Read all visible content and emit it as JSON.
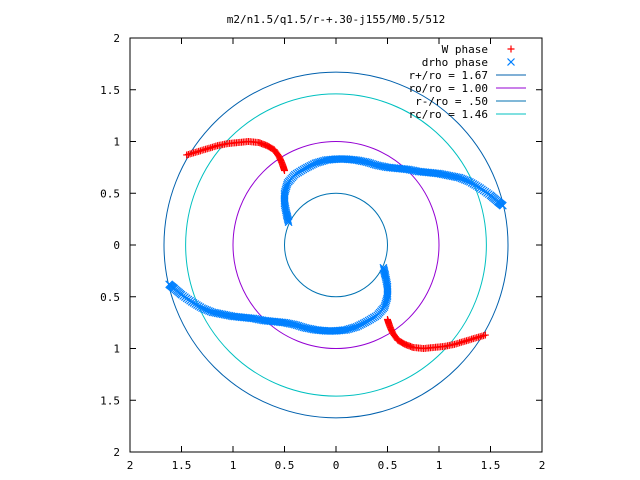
{
  "chart_data": {
    "type": "scatter",
    "title": "m2/n1.5/q1.5/r-+.30-j155/M0.5/512",
    "xlabel": "",
    "ylabel": "",
    "xlim": [
      -2,
      2
    ],
    "ylim": [
      -2,
      2
    ],
    "grid": false,
    "legend_position": "top-right",
    "x_tick_labels": [
      "2",
      "1.5",
      "1",
      "0.5",
      "0",
      "0.5",
      "1",
      "1.5",
      "2"
    ],
    "x_tick_values": [
      -2,
      -1.5,
      -1,
      -0.5,
      0,
      0.5,
      1,
      1.5,
      2
    ],
    "y_tick_labels": [
      "2",
      "1.5",
      "1",
      "0.5",
      "0",
      "0.5",
      "1",
      "1.5",
      "2"
    ],
    "y_tick_values": [
      2,
      1.5,
      1,
      0.5,
      0,
      -0.5,
      -1,
      -1.5,
      -2
    ],
    "series": [
      {
        "name": "W phase",
        "kind": "points",
        "marker": "plus",
        "color": "#ff0000",
        "points": [
          [
            -1.45,
            0.87
          ],
          [
            -1.35,
            0.9
          ],
          [
            -1.25,
            0.93
          ],
          [
            -1.15,
            0.96
          ],
          [
            -1.05,
            0.98
          ],
          [
            -0.95,
            0.99
          ],
          [
            -0.85,
            1.0
          ],
          [
            -0.75,
            0.99
          ],
          [
            -0.67,
            0.96
          ],
          [
            -0.6,
            0.92
          ],
          [
            -0.55,
            0.85
          ],
          [
            -0.52,
            0.78
          ],
          [
            -0.5,
            0.72
          ],
          [
            1.45,
            -0.87
          ],
          [
            1.35,
            -0.9
          ],
          [
            1.25,
            -0.93
          ],
          [
            1.15,
            -0.96
          ],
          [
            1.05,
            -0.98
          ],
          [
            0.95,
            -0.99
          ],
          [
            0.85,
            -1.0
          ],
          [
            0.75,
            -0.99
          ],
          [
            0.67,
            -0.96
          ],
          [
            0.6,
            -0.92
          ],
          [
            0.55,
            -0.85
          ],
          [
            0.52,
            -0.78
          ],
          [
            0.5,
            -0.72
          ]
        ]
      },
      {
        "name": "drho phase",
        "kind": "points",
        "marker": "cross",
        "color": "#0080ff",
        "points": [
          [
            -0.46,
            0.22
          ],
          [
            -0.48,
            0.3
          ],
          [
            -0.5,
            0.4
          ],
          [
            -0.5,
            0.5
          ],
          [
            -0.47,
            0.6
          ],
          [
            -0.4,
            0.68
          ],
          [
            -0.3,
            0.74
          ],
          [
            -0.2,
            0.79
          ],
          [
            -0.1,
            0.82
          ],
          [
            0.0,
            0.83
          ],
          [
            0.1,
            0.83
          ],
          [
            0.2,
            0.82
          ],
          [
            0.3,
            0.8
          ],
          [
            0.4,
            0.77
          ],
          [
            0.5,
            0.75
          ],
          [
            0.6,
            0.74
          ],
          [
            0.7,
            0.73
          ],
          [
            0.8,
            0.71
          ],
          [
            0.9,
            0.7
          ],
          [
            1.0,
            0.69
          ],
          [
            1.1,
            0.67
          ],
          [
            1.2,
            0.65
          ],
          [
            1.3,
            0.61
          ],
          [
            1.4,
            0.55
          ],
          [
            1.5,
            0.48
          ],
          [
            1.57,
            0.42
          ],
          [
            1.62,
            0.38
          ],
          [
            0.46,
            -0.22
          ],
          [
            0.48,
            -0.3
          ],
          [
            0.5,
            -0.4
          ],
          [
            0.5,
            -0.5
          ],
          [
            0.47,
            -0.6
          ],
          [
            0.4,
            -0.68
          ],
          [
            0.3,
            -0.74
          ],
          [
            0.2,
            -0.79
          ],
          [
            0.1,
            -0.82
          ],
          [
            0.0,
            -0.83
          ],
          [
            -0.1,
            -0.83
          ],
          [
            -0.2,
            -0.82
          ],
          [
            -0.3,
            -0.8
          ],
          [
            -0.4,
            -0.77
          ],
          [
            -0.5,
            -0.75
          ],
          [
            -0.6,
            -0.74
          ],
          [
            -0.7,
            -0.73
          ],
          [
            -0.8,
            -0.71
          ],
          [
            -0.9,
            -0.7
          ],
          [
            -1.0,
            -0.69
          ],
          [
            -1.1,
            -0.67
          ],
          [
            -1.2,
            -0.65
          ],
          [
            -1.3,
            -0.61
          ],
          [
            -1.4,
            -0.55
          ],
          [
            -1.5,
            -0.48
          ],
          [
            -1.57,
            -0.42
          ],
          [
            -1.62,
            -0.38
          ]
        ]
      },
      {
        "name": "r+/ro = 1.67",
        "kind": "circle",
        "radius": 1.67,
        "color": "#0060ad"
      },
      {
        "name": "ro/ro = 1.00",
        "kind": "circle",
        "radius": 1.0,
        "color": "#9400d3"
      },
      {
        "name": "r-/ro = .50",
        "kind": "circle",
        "radius": 0.5,
        "color": "#0072b2"
      },
      {
        "name": "rc/ro = 1.46",
        "kind": "circle",
        "radius": 1.46,
        "color": "#00c0c0"
      }
    ]
  }
}
